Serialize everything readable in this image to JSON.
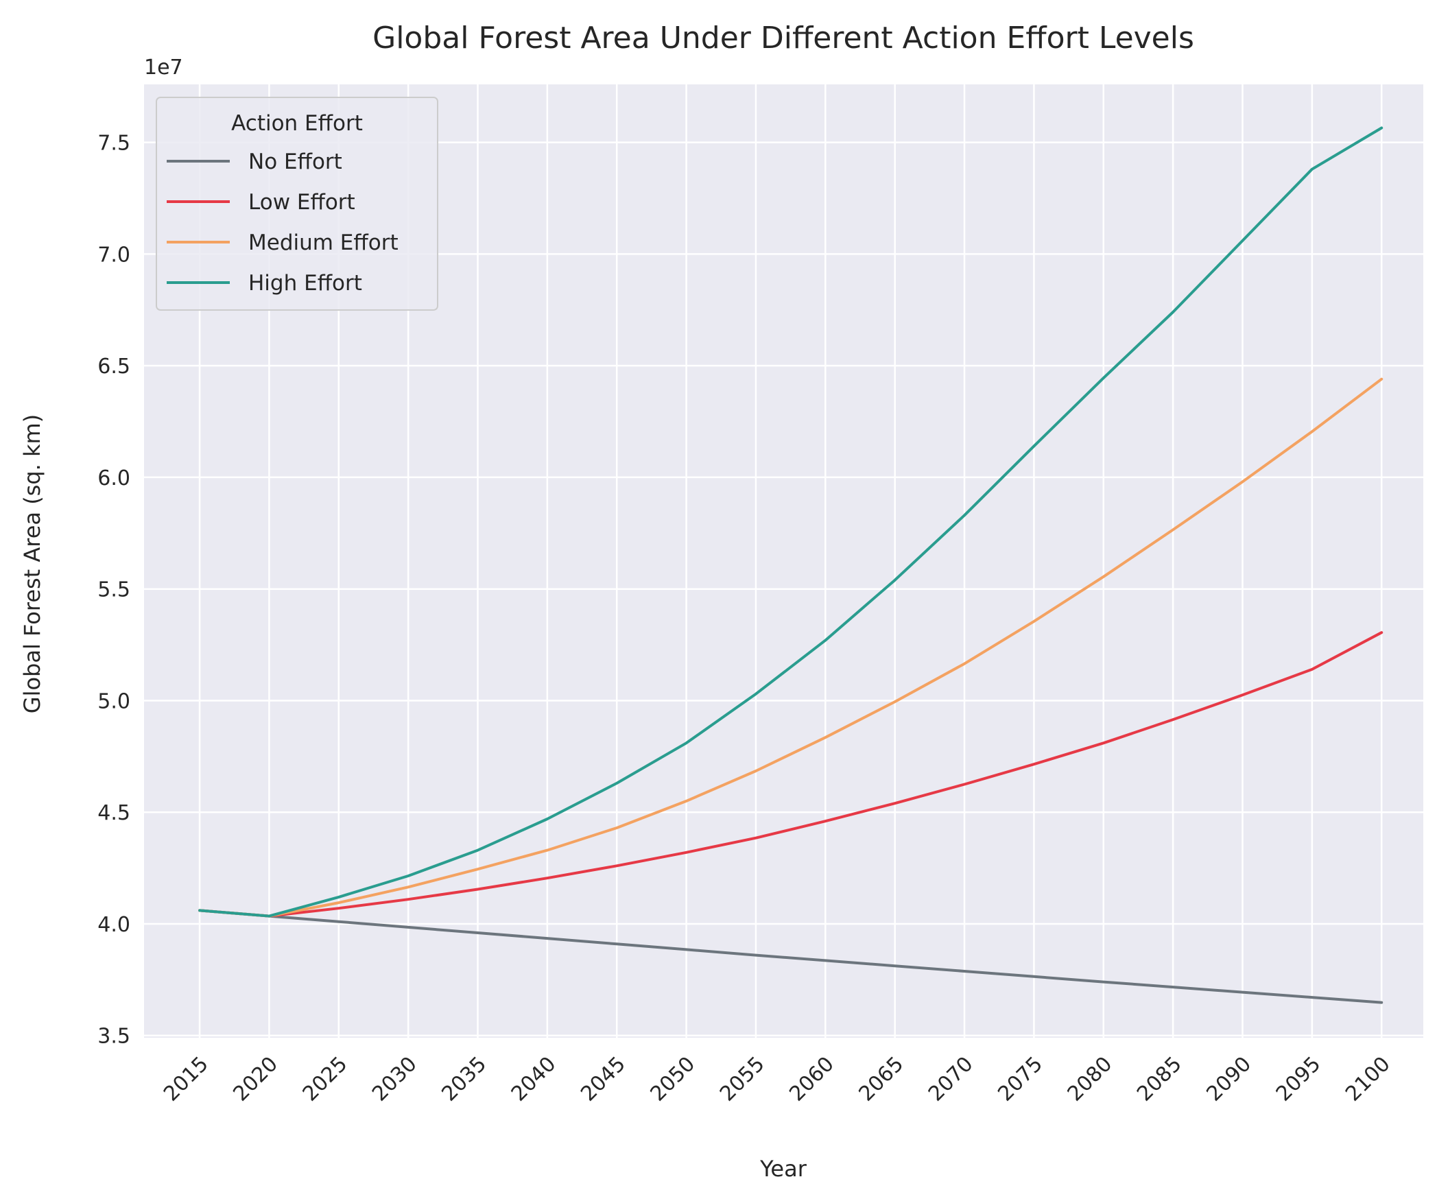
{
  "chart_data": {
    "type": "line",
    "title": "Global Forest Area Under Different Action Effort Levels",
    "xlabel": "Year",
    "ylabel": "Global Forest Area (sq. km)",
    "y_offset_label": "1e7",
    "y_scale_factor": 10000000,
    "xlim": [
      2011,
      2103
    ],
    "ylim": [
      34900000,
      77600000
    ],
    "x_ticks": [
      2015,
      2020,
      2025,
      2030,
      2035,
      2040,
      2045,
      2050,
      2055,
      2060,
      2065,
      2070,
      2075,
      2080,
      2085,
      2090,
      2095,
      2100
    ],
    "y_ticks": [
      35000000,
      40000000,
      45000000,
      50000000,
      55000000,
      60000000,
      65000000,
      70000000,
      75000000
    ],
    "y_tick_labels": [
      "3.5",
      "4.0",
      "4.5",
      "5.0",
      "5.5",
      "6.0",
      "6.5",
      "7.0",
      "7.5"
    ],
    "grid": true,
    "background_color": "#eaeaf2",
    "legend": {
      "title": "Action Effort",
      "placement": "top-left"
    },
    "x": [
      2015,
      2020,
      2025,
      2030,
      2035,
      2040,
      2045,
      2050,
      2055,
      2060,
      2065,
      2070,
      2075,
      2080,
      2085,
      2090,
      2095,
      2100
    ],
    "series": [
      {
        "name": "No Effort",
        "color": "#6c757d",
        "values": [
          40600000,
          40350000,
          40100000,
          39850000,
          39600000,
          39350000,
          39100000,
          38850000,
          38600000,
          38360000,
          38120000,
          37880000,
          37640000,
          37400000,
          37170000,
          36940000,
          36710000,
          36480000
        ]
      },
      {
        "name": "Low Effort",
        "color": "#e63946",
        "values": [
          40600000,
          40350000,
          40700000,
          41100000,
          41550000,
          42050000,
          42600000,
          43200000,
          43850000,
          44600000,
          45400000,
          46250000,
          47150000,
          48100000,
          49150000,
          50250000,
          51400000,
          53050000
        ]
      },
      {
        "name": "Medium Effort",
        "color": "#f4a261",
        "values": [
          40600000,
          40350000,
          40950000,
          41650000,
          42450000,
          43300000,
          44300000,
          45500000,
          46850000,
          48350000,
          49950000,
          51650000,
          53550000,
          55550000,
          57650000,
          59800000,
          62050000,
          64400000
        ]
      },
      {
        "name": "High Effort",
        "color": "#2a9d8f",
        "values": [
          40600000,
          40350000,
          41200000,
          42150000,
          43300000,
          44700000,
          46300000,
          48100000,
          50300000,
          52700000,
          55400000,
          58300000,
          61400000,
          64450000,
          67400000,
          70600000,
          73800000,
          75650000
        ]
      }
    ]
  }
}
